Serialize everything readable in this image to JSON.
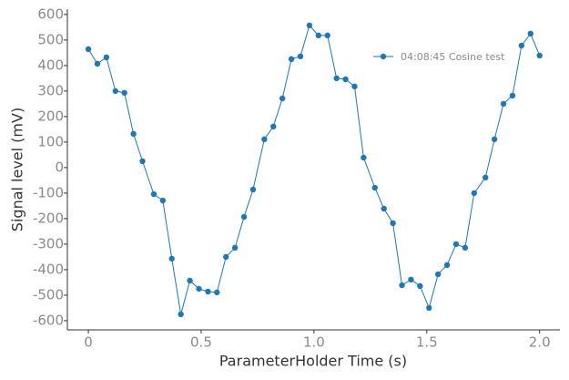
{
  "chart_data": {
    "type": "line",
    "xlabel": "ParameterHolder Time (s)",
    "ylabel": "Signal level (mV)",
    "x": [
      0,
      0.04,
      0.08,
      0.12,
      0.16,
      0.2,
      0.24,
      0.29,
      0.33,
      0.37,
      0.41,
      0.45,
      0.49,
      0.53,
      0.57,
      0.61,
      0.65,
      0.69,
      0.73,
      0.78,
      0.82,
      0.86,
      0.9,
      0.94,
      0.98,
      1.02,
      1.06,
      1.1,
      1.14,
      1.18,
      1.22,
      1.27,
      1.31,
      1.35,
      1.39,
      1.43,
      1.47,
      1.51,
      1.55,
      1.59,
      1.63,
      1.67,
      1.71,
      1.76,
      1.8,
      1.84,
      1.88,
      1.92,
      1.96,
      2.0
    ],
    "series": [
      {
        "name": "04:08:45 Cosine test",
        "color": "#1f77b4",
        "values": [
          464,
          407,
          432,
          300,
          293,
          132,
          25,
          -104,
          -129,
          -357,
          -575,
          -443,
          -475,
          -486,
          -489,
          -350,
          -314,
          -193,
          -86,
          111,
          161,
          271,
          425,
          436,
          557,
          518,
          518,
          350,
          346,
          318,
          39,
          -79,
          -161,
          -218,
          -461,
          -439,
          -464,
          -550,
          -418,
          -382,
          -300,
          -314,
          -100,
          -39,
          111,
          250,
          282,
          478,
          525,
          439
        ]
      }
    ],
    "xlim": [
      -0.093,
      2.09
    ],
    "ylim": [
      -636,
      621
    ],
    "xticks": [
      0,
      0.5,
      {
        "value": 1,
        "label": "1.0"
      },
      1.5,
      {
        "value": 2,
        "label": "2.0"
      }
    ],
    "yticks": [
      -600,
      -500,
      -400,
      -300,
      -200,
      -100,
      0,
      100,
      200,
      300,
      400,
      500,
      600
    ],
    "grid": false,
    "legend": "upper right"
  }
}
